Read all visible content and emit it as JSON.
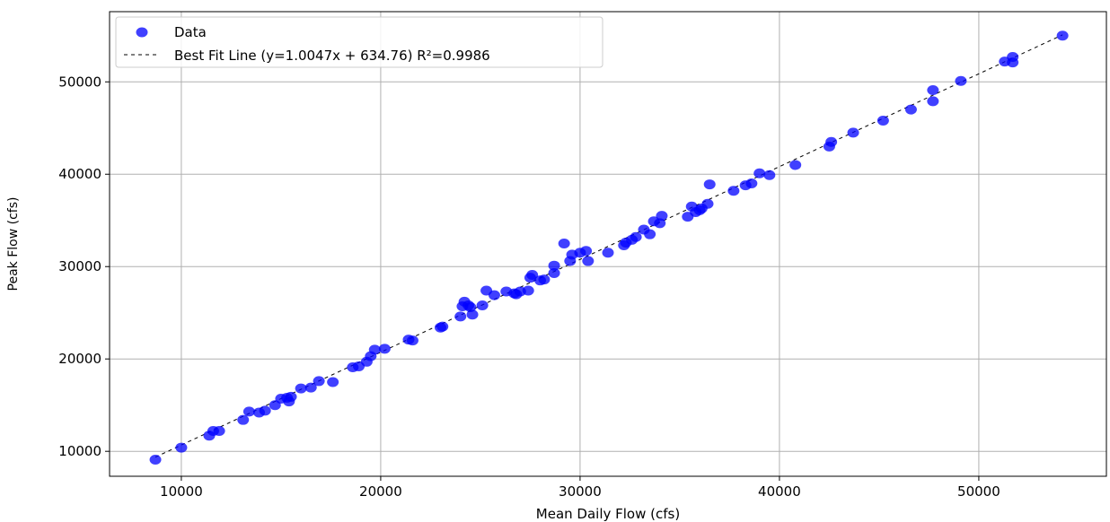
{
  "chart_data": {
    "type": "scatter",
    "title": "",
    "xlabel": "Mean Daily Flow (cfs)",
    "ylabel": "Peak Flow (cfs)",
    "xlim": [
      6400,
      56400
    ],
    "ylim": [
      7300,
      57600
    ],
    "xticks": [
      10000,
      20000,
      30000,
      40000,
      50000
    ],
    "yticks": [
      10000,
      20000,
      30000,
      40000,
      50000
    ],
    "xtick_labels": [
      "10000",
      "20000",
      "30000",
      "40000",
      "50000"
    ],
    "ytick_labels": [
      "10000",
      "20000",
      "30000",
      "40000",
      "50000"
    ],
    "grid": true,
    "legend_position": "top-left",
    "series": [
      {
        "name": "Data",
        "kind": "scatter",
        "color": "#0000ff",
        "x": [
          8700,
          10000,
          11400,
          11600,
          11900,
          13100,
          13400,
          13900,
          14200,
          14700,
          15000,
          15300,
          15500,
          15400,
          16000,
          16500,
          16900,
          17600,
          18600,
          18900,
          19300,
          19500,
          19700,
          20200,
          21400,
          21600,
          23000,
          23100,
          24000,
          24100,
          24200,
          24400,
          24500,
          24600,
          25100,
          25300,
          25700,
          26300,
          26700,
          26800,
          27000,
          27400,
          27500,
          27600,
          28000,
          28200,
          28700,
          28700,
          29200,
          29500,
          29600,
          30000,
          30300,
          30400,
          31400,
          32200,
          32300,
          32600,
          32800,
          33200,
          33500,
          33700,
          34000,
          34100,
          35400,
          35600,
          35800,
          36000,
          36100,
          36400,
          36500,
          37700,
          38300,
          38600,
          39000,
          39500,
          40800,
          42500,
          42600,
          43700,
          45200,
          46600,
          47700,
          47700,
          49100,
          51300,
          51700,
          51700,
          54200
        ],
        "y": [
          9100,
          10400,
          11700,
          12200,
          12200,
          13400,
          14300,
          14200,
          14400,
          15000,
          15700,
          15800,
          15900,
          15400,
          16800,
          16900,
          17600,
          17500,
          19100,
          19200,
          19700,
          20300,
          21000,
          21100,
          22100,
          22000,
          23400,
          23500,
          24600,
          25700,
          26200,
          25800,
          25600,
          24800,
          25800,
          27400,
          26900,
          27300,
          27100,
          27000,
          27300,
          27400,
          28800,
          29100,
          28500,
          28600,
          29300,
          30100,
          32500,
          30600,
          31300,
          31500,
          31700,
          30600,
          31500,
          32300,
          32600,
          32900,
          33200,
          34000,
          33500,
          34900,
          34700,
          35500,
          35400,
          36500,
          35900,
          36100,
          36300,
          36800,
          38900,
          38200,
          38800,
          39000,
          40100,
          39900,
          41000,
          43000,
          43500,
          44500,
          45800,
          47000,
          47900,
          49100,
          50100,
          52200,
          52100,
          52700,
          55000
        ]
      },
      {
        "name": "Best Fit Line (y=1.0047x + 634.76) R²=0.9986",
        "kind": "line",
        "style": "dashed",
        "color": "#000000",
        "slope": 1.0047,
        "intercept": 634.76,
        "x_range": [
          8700,
          54200
        ]
      }
    ]
  }
}
